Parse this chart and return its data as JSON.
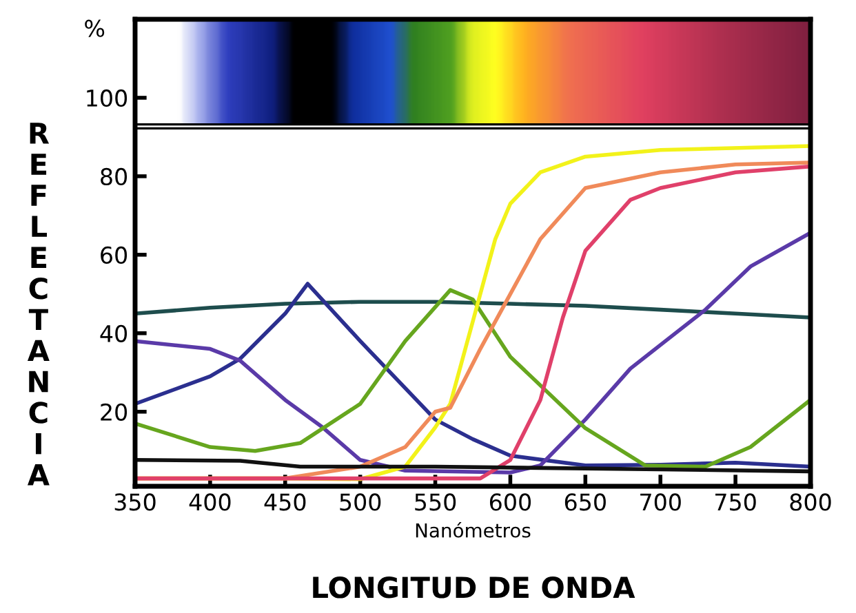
{
  "chart_data": {
    "type": "line",
    "xlabel": "Nanómetros",
    "ylabel": "REFLECTANCIA",
    "annotations": [
      "%",
      "LONGITUD DE ONDA"
    ],
    "xlim": [
      350,
      800
    ],
    "ylim": [
      1,
      120
    ],
    "xticks": [
      350,
      400,
      450,
      500,
      550,
      600,
      650,
      700,
      750,
      800
    ],
    "yticks": [
      20,
      40,
      60,
      80,
      100
    ],
    "grid": false,
    "legend": false,
    "marker": "none",
    "line_style": "solid",
    "series": [
      {
        "color": "#1e4d4d",
        "x": [
          350,
          400,
          450,
          500,
          550,
          600,
          650,
          700,
          750,
          800
        ],
        "values": [
          45,
          46.5,
          47.5,
          48,
          48,
          47.5,
          47,
          46,
          45,
          44
        ]
      },
      {
        "color": "#2b2f8f",
        "x": [
          350,
          400,
          420,
          450,
          465,
          500,
          550,
          575,
          600,
          650,
          700,
          750,
          800
        ],
        "values": [
          22,
          29,
          33.5,
          45,
          52.6,
          38,
          18,
          13,
          8.8,
          6.3,
          6.5,
          7,
          6
        ]
      },
      {
        "color": "#5a3aa8",
        "x": [
          350,
          400,
          420,
          450,
          475,
          500,
          530,
          600,
          620,
          650,
          680,
          700,
          730,
          760,
          800
        ],
        "values": [
          38,
          36,
          33,
          23,
          16,
          7.7,
          5,
          4.5,
          6.3,
          18,
          31,
          37,
          46,
          57,
          65.6
        ]
      },
      {
        "color": "#66a61e",
        "x": [
          350,
          400,
          430,
          460,
          500,
          530,
          560,
          575,
          600,
          650,
          690,
          730,
          760,
          800
        ],
        "values": [
          17,
          11,
          10,
          12,
          22,
          38,
          51,
          48.6,
          34,
          15.8,
          6.3,
          6,
          11,
          23
        ]
      },
      {
        "color": "#f2f21a",
        "x": [
          350,
          450,
          500,
          530,
          550,
          560,
          575,
          590,
          600,
          620,
          650,
          700,
          800
        ],
        "values": [
          3,
          3,
          2.8,
          6,
          16,
          22,
          43,
          64,
          73,
          81,
          85,
          86.7,
          87.7
        ]
      },
      {
        "color": "#f08a5a",
        "x": [
          350,
          450,
          500,
          530,
          550,
          560,
          580,
          600,
          620,
          650,
          700,
          750,
          800
        ],
        "values": [
          3,
          3,
          6,
          11,
          20,
          21,
          36,
          50,
          64,
          77,
          81,
          83,
          83.5
        ]
      },
      {
        "color": "#e0406a",
        "x": [
          350,
          500,
          580,
          600,
          620,
          635,
          650,
          680,
          700,
          750,
          800
        ],
        "values": [
          3,
          3,
          3,
          7.7,
          23,
          44,
          61,
          74,
          77,
          81,
          82.5
        ]
      },
      {
        "color": "#111111",
        "x": [
          350,
          420,
          460,
          550,
          700,
          800
        ],
        "values": [
          7.7,
          7.5,
          6,
          6,
          5.3,
          4.8
        ]
      }
    ]
  }
}
